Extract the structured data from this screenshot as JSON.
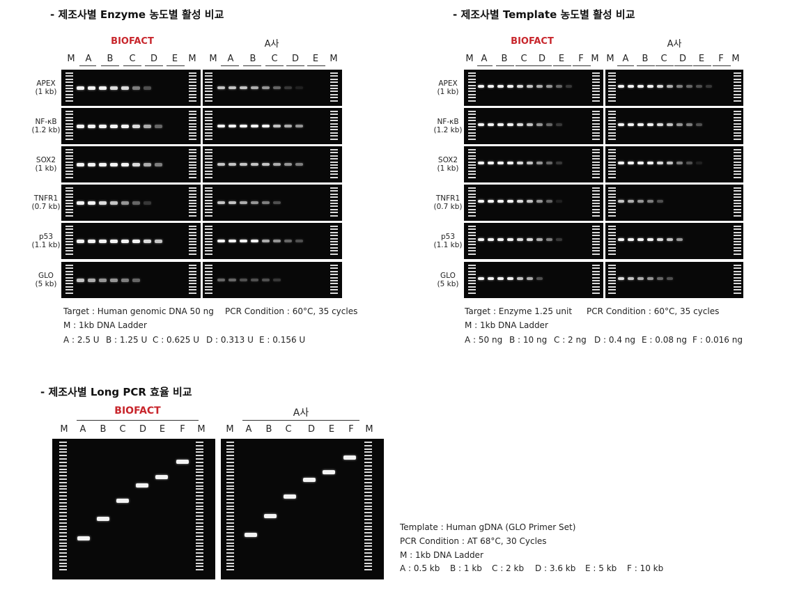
{
  "titles": {
    "enzyme": "-  제조사별 Enzyme 농도별 활성 비교",
    "template": "- 제조사별 Template 농도별 활성 비교",
    "longpcr": "-  제조사별 Long PCR 효율 비교"
  },
  "brands": {
    "biofact": "BIOFACT",
    "competitor": "A사"
  },
  "lanes_enzyme": [
    "M",
    "A",
    "B",
    "C",
    "D",
    "E",
    "M",
    "M",
    "A",
    "B",
    "C",
    "D",
    "E",
    "M"
  ],
  "lanes_template": [
    "M",
    "A",
    "B",
    "C",
    "D",
    "E",
    "F",
    "M",
    "M",
    "A",
    "B",
    "C",
    "D",
    "E",
    "F",
    "M"
  ],
  "lanes_long": [
    "M",
    "A",
    "B",
    "C",
    "D",
    "E",
    "F",
    "M",
    "M",
    "A",
    "B",
    "C",
    "D",
    "E",
    "F",
    "M"
  ],
  "genes": [
    {
      "name": "APEX",
      "size": "(1 kb)"
    },
    {
      "name": "NF-κB",
      "size": "(1.2 kb)"
    },
    {
      "name": "SOX2",
      "size": "(1 kb)"
    },
    {
      "name": "TNFR1",
      "size": "(0.7 kb)"
    },
    {
      "name": "p53",
      "size": "(1.1 kb)"
    },
    {
      "name": "GLO",
      "size": "(5 kb)"
    }
  ],
  "enzyme_info": {
    "target": "Target : Human genomic DNA 50 ng",
    "condition": "PCR Condition : 60°C, 35 cycles",
    "ladder": "M : 1kb DNA Ladder",
    "conc": [
      "A : 2.5 U",
      "B : 1.25 U",
      "C : 0.625 U",
      "D : 0.313 U",
      "E : 0.156 U"
    ]
  },
  "template_info": {
    "target": "Target : Enzyme 1.25 unit",
    "condition": "PCR Condition : 60°C, 35 cycles",
    "ladder": "M : 1kb DNA Ladder",
    "conc": [
      "A : 50 ng",
      "B : 10 ng",
      "C : 2 ng",
      "D : 0.4 ng",
      "E : 0.08 ng",
      "F : 0.016 ng"
    ]
  },
  "long_info": {
    "template": "Template : Human gDNA (GLO Primer Set)",
    "condition": "PCR Condition : AT 68°C, 30 Cycles",
    "ladder": "M : 1kb DNA Ladder",
    "sizes": [
      "A : 0.5 kb",
      "B : 1 kb",
      "C : 2 kb",
      "D : 3.6 kb",
      "E : 5 kb",
      "F : 10 kb"
    ]
  }
}
